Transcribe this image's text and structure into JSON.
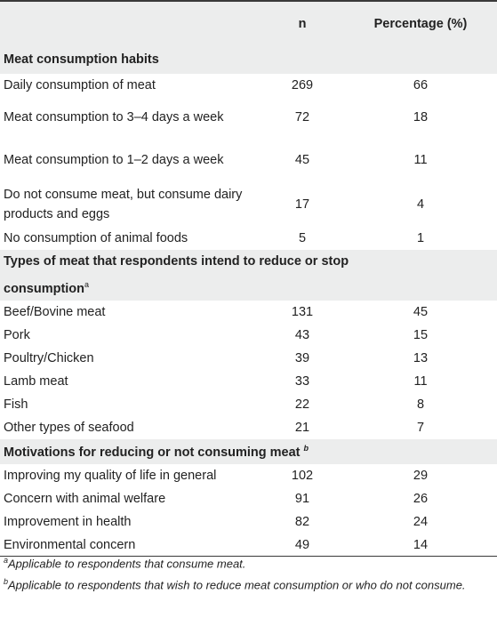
{
  "table": {
    "headers": {
      "label": "",
      "n": "n",
      "pct": "Percentage (%)"
    },
    "sections": [
      {
        "title": "Meat consumption habits",
        "title_sup": "",
        "rows": [
          {
            "label": "Daily consumption of meat",
            "n": "269",
            "pct": "66"
          },
          {
            "label": "Meat consumption to 3–4 days a week",
            "n": "72",
            "pct": "18"
          },
          {
            "label": "Meat consumption to 1–2 days a week",
            "n": "45",
            "pct": "11"
          },
          {
            "label": "Do not consume meat, but consume dairy products and eggs",
            "n": "17",
            "pct": "4"
          },
          {
            "label": "No consumption of animal foods",
            "n": "5",
            "pct": "1"
          }
        ]
      },
      {
        "title_line1": "Types of meat that respondents intend to reduce or stop",
        "title_line2": "consumption",
        "title_sup": "a",
        "rows": [
          {
            "label": "Beef/Bovine meat",
            "n": "131",
            "pct": "45"
          },
          {
            "label": "Pork",
            "n": "43",
            "pct": "15"
          },
          {
            "label": "Poultry/Chicken",
            "n": "39",
            "pct": "13"
          },
          {
            "label": "Lamb meat",
            "n": "33",
            "pct": "11"
          },
          {
            "label": "Fish",
            "n": "22",
            "pct": "8"
          },
          {
            "label": "Other types of seafood",
            "n": "21",
            "pct": "7"
          }
        ]
      },
      {
        "title": "Motivations for reducing or not consuming meat",
        "title_sup": "b",
        "rows": [
          {
            "label": "Improving my quality of life in general",
            "n": "102",
            "pct": "29"
          },
          {
            "label": "Concern with animal welfare",
            "n": "91",
            "pct": "26"
          },
          {
            "label": "Improvement in health",
            "n": "82",
            "pct": "24"
          },
          {
            "label": "Environmental concern",
            "n": "49",
            "pct": "14"
          }
        ]
      }
    ]
  },
  "footnotes": [
    {
      "mark": "a",
      "text": "Applicable to respondents that consume meat."
    },
    {
      "mark": "b",
      "text": "Applicable to respondents that wish to reduce meat consumption or who do not consume."
    }
  ]
}
